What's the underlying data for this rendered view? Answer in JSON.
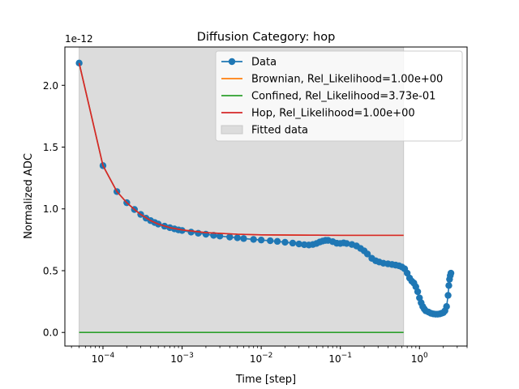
{
  "chart_data": {
    "type": "line",
    "title": "Diffusion Category: hop",
    "xlabel": "Time [step]",
    "ylabel": "Normalized ADC",
    "y_offset_text": "1e-12",
    "x_scale": "log",
    "xlim": [
      3.3e-05,
      4.0
    ],
    "ylim": [
      -0.11,
      2.31
    ],
    "x_ticks": [
      {
        "value": 0.0001,
        "base": "10",
        "exp": "−4"
      },
      {
        "value": 0.001,
        "base": "10",
        "exp": "−3"
      },
      {
        "value": 0.01,
        "base": "10",
        "exp": "−2"
      },
      {
        "value": 0.1,
        "base": "10",
        "exp": "−1"
      },
      {
        "value": 1,
        "base": "10",
        "exp": "0"
      }
    ],
    "y_ticks": [
      {
        "value": 0.0,
        "label": "0.0"
      },
      {
        "value": 0.5,
        "label": "0.5"
      },
      {
        "value": 1.0,
        "label": "1.0"
      },
      {
        "value": 1.5,
        "label": "1.5"
      },
      {
        "value": 2.0,
        "label": "2.0"
      }
    ],
    "fitted_span": [
      5e-05,
      0.63
    ],
    "legend_position": "top-right",
    "series": [
      {
        "name": "Data",
        "color": "#1f77b4",
        "marker": "circle",
        "points": [
          [
            5e-05,
            2.18
          ],
          [
            0.0001,
            1.35
          ],
          [
            0.00015,
            1.14
          ],
          [
            0.0002,
            1.05
          ],
          [
            0.00025,
            0.995
          ],
          [
            0.0003,
            0.955
          ],
          [
            0.00035,
            0.925
          ],
          [
            0.0004,
            0.905
          ],
          [
            0.00045,
            0.89
          ],
          [
            0.0005,
            0.877
          ],
          [
            0.0006,
            0.86
          ],
          [
            0.0007,
            0.848
          ],
          [
            0.0008,
            0.838
          ],
          [
            0.0009,
            0.83
          ],
          [
            0.001,
            0.825
          ],
          [
            0.0013,
            0.812
          ],
          [
            0.0016,
            0.803
          ],
          [
            0.002,
            0.795
          ],
          [
            0.0025,
            0.786
          ],
          [
            0.003,
            0.78
          ],
          [
            0.004,
            0.772
          ],
          [
            0.005,
            0.766
          ],
          [
            0.006,
            0.76
          ],
          [
            0.008,
            0.753
          ],
          [
            0.01,
            0.748
          ],
          [
            0.013,
            0.742
          ],
          [
            0.016,
            0.737
          ],
          [
            0.02,
            0.73
          ],
          [
            0.025,
            0.723
          ],
          [
            0.03,
            0.716
          ],
          [
            0.035,
            0.71
          ],
          [
            0.04,
            0.708
          ],
          [
            0.045,
            0.712
          ],
          [
            0.05,
            0.72
          ],
          [
            0.055,
            0.732
          ],
          [
            0.06,
            0.74
          ],
          [
            0.065,
            0.745
          ],
          [
            0.07,
            0.745
          ],
          [
            0.08,
            0.735
          ],
          [
            0.09,
            0.722
          ],
          [
            0.1,
            0.72
          ],
          [
            0.11,
            0.725
          ],
          [
            0.12,
            0.72
          ],
          [
            0.14,
            0.712
          ],
          [
            0.16,
            0.7
          ],
          [
            0.18,
            0.68
          ],
          [
            0.2,
            0.66
          ],
          [
            0.22,
            0.635
          ],
          [
            0.25,
            0.6
          ],
          [
            0.28,
            0.58
          ],
          [
            0.31,
            0.57
          ],
          [
            0.35,
            0.56
          ],
          [
            0.4,
            0.555
          ],
          [
            0.45,
            0.55
          ],
          [
            0.5,
            0.545
          ],
          [
            0.55,
            0.54
          ],
          [
            0.6,
            0.53
          ],
          [
            0.65,
            0.515
          ],
          [
            0.7,
            0.48
          ],
          [
            0.75,
            0.44
          ],
          [
            0.8,
            0.415
          ],
          [
            0.85,
            0.4
          ],
          [
            0.9,
            0.37
          ],
          [
            0.95,
            0.33
          ],
          [
            1.0,
            0.28
          ],
          [
            1.05,
            0.24
          ],
          [
            1.1,
            0.21
          ],
          [
            1.15,
            0.19
          ],
          [
            1.2,
            0.175
          ],
          [
            1.3,
            0.165
          ],
          [
            1.4,
            0.155
          ],
          [
            1.5,
            0.15
          ],
          [
            1.6,
            0.148
          ],
          [
            1.7,
            0.148
          ],
          [
            1.8,
            0.15
          ],
          [
            1.9,
            0.155
          ],
          [
            2.0,
            0.16
          ],
          [
            2.1,
            0.175
          ],
          [
            2.2,
            0.21
          ],
          [
            2.3,
            0.3
          ],
          [
            2.35,
            0.38
          ],
          [
            2.4,
            0.43
          ],
          [
            2.45,
            0.46
          ],
          [
            2.5,
            0.48
          ]
        ]
      },
      {
        "name": "Brownian, Rel_Likelihood=1.00e+00",
        "color": "#ff7f0e",
        "marker": "none",
        "points": [
          [
            5e-05,
            2.18
          ],
          [
            0.0001,
            1.35
          ],
          [
            0.00015,
            1.14
          ],
          [
            0.0002,
            1.05
          ],
          [
            0.00025,
            0.995
          ],
          [
            0.0003,
            0.955
          ],
          [
            0.0004,
            0.905
          ],
          [
            0.0005,
            0.877
          ],
          [
            0.0007,
            0.848
          ],
          [
            0.001,
            0.83
          ],
          [
            0.002,
            0.808
          ],
          [
            0.005,
            0.795
          ],
          [
            0.01,
            0.79
          ],
          [
            0.05,
            0.787
          ],
          [
            0.1,
            0.786
          ],
          [
            0.63,
            0.786
          ]
        ]
      },
      {
        "name": "Confined, Rel_Likelihood=3.73e-01",
        "color": "#2ca02c",
        "marker": "none",
        "points": [
          [
            5e-05,
            0.0
          ],
          [
            0.63,
            0.0
          ]
        ]
      },
      {
        "name": "Hop, Rel_Likelihood=1.00e+00",
        "color": "#d62728",
        "marker": "none",
        "points": [
          [
            5e-05,
            2.18
          ],
          [
            0.0001,
            1.35
          ],
          [
            0.00015,
            1.14
          ],
          [
            0.0002,
            1.05
          ],
          [
            0.00025,
            0.995
          ],
          [
            0.0003,
            0.955
          ],
          [
            0.0004,
            0.905
          ],
          [
            0.0005,
            0.877
          ],
          [
            0.0007,
            0.848
          ],
          [
            0.001,
            0.83
          ],
          [
            0.002,
            0.808
          ],
          [
            0.005,
            0.795
          ],
          [
            0.01,
            0.79
          ],
          [
            0.05,
            0.787
          ],
          [
            0.1,
            0.786
          ],
          [
            0.63,
            0.786
          ]
        ]
      }
    ],
    "legend_entries": [
      {
        "label": "Data",
        "color": "#1f77b4",
        "kind": "line-marker"
      },
      {
        "label": "Brownian, Rel_Likelihood=1.00e+00",
        "color": "#ff7f0e",
        "kind": "line"
      },
      {
        "label": "Confined, Rel_Likelihood=3.73e-01",
        "color": "#2ca02c",
        "kind": "line"
      },
      {
        "label": "Hop, Rel_Likelihood=1.00e+00",
        "color": "#d62728",
        "kind": "line"
      },
      {
        "label": "Fitted data",
        "color": "#dcdcdc",
        "kind": "patch"
      }
    ]
  }
}
